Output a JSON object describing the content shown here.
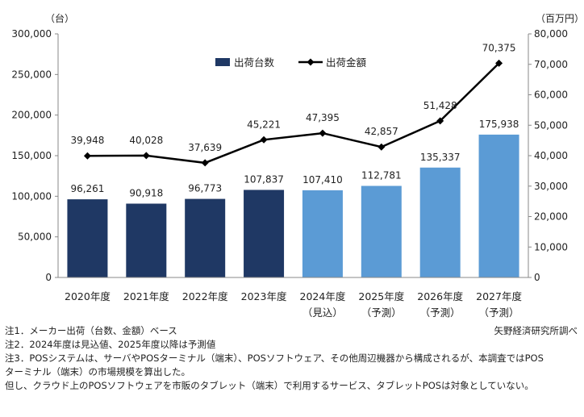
{
  "chart_data": {
    "type": "bar+line",
    "categories": [
      [
        "2020年度",
        ""
      ],
      [
        "2021年度",
        ""
      ],
      [
        "2022年度",
        ""
      ],
      [
        "2023年度",
        ""
      ],
      [
        "2024年度",
        "（見込）"
      ],
      [
        "2025年度",
        "（予測）"
      ],
      [
        "2026年度",
        "（予測）"
      ],
      [
        "2027年度",
        "（予測）"
      ]
    ],
    "series": [
      {
        "name": "出荷台数",
        "type": "bar",
        "axis": "left",
        "values": [
          96261,
          90918,
          96773,
          107837,
          107410,
          112781,
          135337,
          175938
        ],
        "labels": [
          "96,261",
          "90,918",
          "96,773",
          "107,837",
          "107,410",
          "112,781",
          "135,337",
          "175,938"
        ],
        "colors": [
          "#1f3864",
          "#1f3864",
          "#1f3864",
          "#1f3864",
          "#5b9bd5",
          "#5b9bd5",
          "#5b9bd5",
          "#5b9bd5"
        ]
      },
      {
        "name": "出荷金額",
        "type": "line",
        "axis": "right",
        "values": [
          39948,
          40028,
          37639,
          45221,
          47395,
          42857,
          51428,
          70375
        ],
        "labels": [
          "39,948",
          "40,028",
          "37,639",
          "45,221",
          "47,395",
          "42,857",
          "51,428",
          "70,375"
        ],
        "color": "#000000"
      }
    ],
    "left_axis": {
      "unit": "（台）",
      "ylim": [
        0,
        300000
      ],
      "ticks": [
        "0",
        "50,000",
        "100,000",
        "150,000",
        "200,000",
        "250,000",
        "300,000"
      ]
    },
    "right_axis": {
      "unit": "（百万円）",
      "ylim": [
        0,
        80000
      ],
      "ticks": [
        "0",
        "10,000",
        "20,000",
        "30,000",
        "40,000",
        "50,000",
        "60,000",
        "70,000",
        "80,000"
      ]
    },
    "legend_position": "top-center",
    "grid": false
  },
  "notes": [
    "注1．メーカー出荷（台数、金額）ベース",
    "注2．2024年度は見込値、2025年度以降は予測値",
    "注3．POSシステムは、サーバやPOSターミナル（端末）、POSソフトウェア、その他周辺機器から構成されるが、本調査ではPOS",
    "ターミナル（端末）の市場規模を算出した。",
    "但し、クラウド上のPOSソフトウェアを市販のタブレット（端末）で利用するサービス、タブレットPOSは対象としていない。"
  ],
  "source": "矢野経済研究所調べ"
}
